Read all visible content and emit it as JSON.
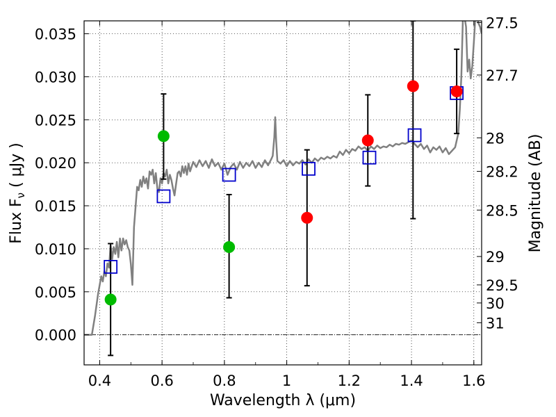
{
  "chart_data": {
    "type": "scatter",
    "xlabel": "Wavelength  λ (μm)",
    "ylabel": "Flux  F",
    "ylabel_sub": "ν",
    "ylabel_unit": "  ( μJy )",
    "ylabel_right": "Magnitude (AB)",
    "xlim": [
      0.35,
      1.625
    ],
    "ylim": [
      -0.0035,
      0.0365
    ],
    "grid": true,
    "x_ticks": [
      {
        "value": 0.4,
        "label": "0.4"
      },
      {
        "value": 0.6,
        "label": "0.6"
      },
      {
        "value": 0.8,
        "label": "0.8"
      },
      {
        "value": 1.0,
        "label": "1"
      },
      {
        "value": 1.2,
        "label": "1.2"
      },
      {
        "value": 1.4,
        "label": "1.4"
      },
      {
        "value": 1.6,
        "label": "1.6"
      }
    ],
    "y_ticks": [
      {
        "value": 0.0,
        "label": "0.000"
      },
      {
        "value": 0.005,
        "label": "0.005"
      },
      {
        "value": 0.01,
        "label": "0.010"
      },
      {
        "value": 0.015,
        "label": "0.015"
      },
      {
        "value": 0.02,
        "label": "0.020"
      },
      {
        "value": 0.025,
        "label": "0.025"
      },
      {
        "value": 0.03,
        "label": "0.030"
      },
      {
        "value": 0.035,
        "label": "0.035"
      }
    ],
    "right_ticks": [
      {
        "flux": 0.0363,
        "label": "27.5"
      },
      {
        "flux": 0.0302,
        "label": "27.7"
      },
      {
        "flux": 0.0229,
        "label": "28"
      },
      {
        "flux": 0.019,
        "label": "28.2"
      },
      {
        "flux": 0.0145,
        "label": "28.5"
      },
      {
        "flux": 0.0091,
        "label": "29"
      },
      {
        "flux": 0.0058,
        "label": "29.5"
      },
      {
        "flux": 0.0037,
        "label": "30"
      },
      {
        "flux": 0.0014,
        "label": "31"
      }
    ],
    "series": [
      {
        "kind": "template",
        "color": "#808080",
        "points": [
          [
            0.35,
            0.0
          ],
          [
            0.36,
            0.0
          ],
          [
            0.37,
            0.0
          ],
          [
            0.375,
            0.0
          ],
          [
            0.385,
            0.0022
          ],
          [
            0.395,
            0.0048
          ],
          [
            0.405,
            0.0068
          ],
          [
            0.41,
            0.0062
          ],
          [
            0.415,
            0.0074
          ],
          [
            0.42,
            0.0068
          ],
          [
            0.425,
            0.0083
          ],
          [
            0.43,
            0.0078
          ],
          [
            0.435,
            0.0104
          ],
          [
            0.44,
            0.0088
          ],
          [
            0.445,
            0.0102
          ],
          [
            0.45,
            0.0094
          ],
          [
            0.455,
            0.0108
          ],
          [
            0.46,
            0.009
          ],
          [
            0.465,
            0.0112
          ],
          [
            0.47,
            0.0098
          ],
          [
            0.475,
            0.0112
          ],
          [
            0.48,
            0.0105
          ],
          [
            0.485,
            0.011
          ],
          [
            0.49,
            0.0102
          ],
          [
            0.495,
            0.0098
          ],
          [
            0.5,
            0.0082
          ],
          [
            0.505,
            0.0058
          ],
          [
            0.51,
            0.0125
          ],
          [
            0.515,
            0.0148
          ],
          [
            0.52,
            0.0172
          ],
          [
            0.525,
            0.0168
          ],
          [
            0.53,
            0.018
          ],
          [
            0.535,
            0.0172
          ],
          [
            0.54,
            0.0184
          ],
          [
            0.545,
            0.0176
          ],
          [
            0.55,
            0.0182
          ],
          [
            0.555,
            0.017
          ],
          [
            0.56,
            0.019
          ],
          [
            0.565,
            0.0186
          ],
          [
            0.57,
            0.0192
          ],
          [
            0.575,
            0.0176
          ],
          [
            0.58,
            0.0188
          ],
          [
            0.585,
            0.017
          ],
          [
            0.59,
            0.0166
          ],
          [
            0.595,
            0.0182
          ],
          [
            0.6,
            0.0176
          ],
          [
            0.605,
            0.0188
          ],
          [
            0.61,
            0.0184
          ],
          [
            0.615,
            0.0192
          ],
          [
            0.62,
            0.0176
          ],
          [
            0.625,
            0.0186
          ],
          [
            0.63,
            0.018
          ],
          [
            0.635,
            0.017
          ],
          [
            0.64,
            0.0162
          ],
          [
            0.645,
            0.0175
          ],
          [
            0.65,
            0.0188
          ],
          [
            0.655,
            0.019
          ],
          [
            0.66,
            0.0184
          ],
          [
            0.665,
            0.0196
          ],
          [
            0.67,
            0.0188
          ],
          [
            0.675,
            0.0196
          ],
          [
            0.68,
            0.0186
          ],
          [
            0.685,
            0.0199
          ],
          [
            0.69,
            0.019
          ],
          [
            0.7,
            0.0201
          ],
          [
            0.71,
            0.0195
          ],
          [
            0.72,
            0.0203
          ],
          [
            0.73,
            0.0196
          ],
          [
            0.74,
            0.0202
          ],
          [
            0.75,
            0.0194
          ],
          [
            0.76,
            0.0204
          ],
          [
            0.77,
            0.0196
          ],
          [
            0.78,
            0.02
          ],
          [
            0.79,
            0.0192
          ],
          [
            0.8,
            0.0199
          ],
          [
            0.81,
            0.0186
          ],
          [
            0.82,
            0.0195
          ],
          [
            0.83,
            0.0199
          ],
          [
            0.84,
            0.0192
          ],
          [
            0.85,
            0.0201
          ],
          [
            0.86,
            0.0194
          ],
          [
            0.87,
            0.02
          ],
          [
            0.88,
            0.0196
          ],
          [
            0.89,
            0.0202
          ],
          [
            0.9,
            0.0194
          ],
          [
            0.91,
            0.02
          ],
          [
            0.92,
            0.0195
          ],
          [
            0.93,
            0.0203
          ],
          [
            0.94,
            0.0197
          ],
          [
            0.95,
            0.0204
          ],
          [
            0.955,
            0.0208
          ],
          [
            0.96,
            0.023
          ],
          [
            0.963,
            0.0253
          ],
          [
            0.966,
            0.0225
          ],
          [
            0.97,
            0.0202
          ],
          [
            0.98,
            0.0199
          ],
          [
            0.99,
            0.0203
          ],
          [
            1.0,
            0.0196
          ],
          [
            1.01,
            0.0202
          ],
          [
            1.02,
            0.0197
          ],
          [
            1.03,
            0.0201
          ],
          [
            1.04,
            0.0199
          ],
          [
            1.05,
            0.0203
          ],
          [
            1.06,
            0.0198
          ],
          [
            1.07,
            0.0204
          ],
          [
            1.08,
            0.02
          ],
          [
            1.09,
            0.0205
          ],
          [
            1.1,
            0.0202
          ],
          [
            1.11,
            0.0206
          ],
          [
            1.12,
            0.0204
          ],
          [
            1.13,
            0.0207
          ],
          [
            1.14,
            0.0205
          ],
          [
            1.15,
            0.0208
          ],
          [
            1.16,
            0.0206
          ],
          [
            1.17,
            0.0213
          ],
          [
            1.18,
            0.0209
          ],
          [
            1.19,
            0.0215
          ],
          [
            1.2,
            0.0211
          ],
          [
            1.21,
            0.0216
          ],
          [
            1.22,
            0.0214
          ],
          [
            1.23,
            0.0219
          ],
          [
            1.24,
            0.0216
          ],
          [
            1.25,
            0.0218
          ],
          [
            1.26,
            0.0214
          ],
          [
            1.27,
            0.0219
          ],
          [
            1.28,
            0.0216
          ],
          [
            1.29,
            0.022
          ],
          [
            1.3,
            0.0217
          ],
          [
            1.31,
            0.0219
          ],
          [
            1.32,
            0.0218
          ],
          [
            1.33,
            0.0221
          ],
          [
            1.34,
            0.0219
          ],
          [
            1.35,
            0.0222
          ],
          [
            1.36,
            0.0221
          ],
          [
            1.37,
            0.0223
          ],
          [
            1.38,
            0.0222
          ],
          [
            1.39,
            0.0224
          ],
          [
            1.4,
            0.0226
          ],
          [
            1.41,
            0.0222
          ],
          [
            1.42,
            0.0218
          ],
          [
            1.43,
            0.0222
          ],
          [
            1.44,
            0.0216
          ],
          [
            1.45,
            0.022
          ],
          [
            1.46,
            0.0212
          ],
          [
            1.47,
            0.0218
          ],
          [
            1.48,
            0.0215
          ],
          [
            1.49,
            0.0219
          ],
          [
            1.5,
            0.0212
          ],
          [
            1.51,
            0.0217
          ],
          [
            1.52,
            0.021
          ],
          [
            1.53,
            0.0214
          ],
          [
            1.54,
            0.0218
          ],
          [
            1.55,
            0.0234
          ],
          [
            1.555,
            0.0262
          ],
          [
            1.56,
            0.03
          ],
          [
            1.565,
            0.037
          ],
          [
            1.57,
            0.037
          ],
          [
            1.575,
            0.0358
          ],
          [
            1.58,
            0.0306
          ],
          [
            1.585,
            0.032
          ],
          [
            1.59,
            0.0298
          ],
          [
            1.595,
            0.0312
          ],
          [
            1.6,
            0.034
          ],
          [
            1.605,
            0.037
          ],
          [
            1.61,
            0.037
          ],
          [
            1.615,
            0.0362
          ],
          [
            1.62,
            0.0358
          ],
          [
            1.625,
            0.035
          ]
        ]
      },
      {
        "kind": "model",
        "marker": "open-square",
        "color": "#0000cc",
        "points": [
          {
            "x": 0.435,
            "y": 0.0079
          },
          {
            "x": 0.605,
            "y": 0.0161
          },
          {
            "x": 0.815,
            "y": 0.0186
          },
          {
            "x": 1.07,
            "y": 0.0193
          },
          {
            "x": 1.265,
            "y": 0.0206
          },
          {
            "x": 1.41,
            "y": 0.0232
          },
          {
            "x": 1.545,
            "y": 0.0281
          }
        ]
      },
      {
        "kind": "observed-green",
        "marker": "filled-circle",
        "color": "#00bb00",
        "points": [
          {
            "x": 0.435,
            "y": 0.0041,
            "lo": -0.0024,
            "hi": 0.0106
          },
          {
            "x": 0.605,
            "y": 0.0231,
            "lo": 0.0181,
            "hi": 0.028
          },
          {
            "x": 0.815,
            "y": 0.0102,
            "lo": 0.0043,
            "hi": 0.0163
          }
        ]
      },
      {
        "kind": "observed-red",
        "marker": "filled-circle",
        "color": "#ff0000",
        "points": [
          {
            "x": 1.065,
            "y": 0.0136,
            "lo": 0.0057,
            "hi": 0.0215
          },
          {
            "x": 1.26,
            "y": 0.0226,
            "lo": 0.0173,
            "hi": 0.0279
          },
          {
            "x": 1.405,
            "y": 0.0289,
            "lo": 0.0135,
            "hi": 0.0365
          },
          {
            "x": 1.545,
            "y": 0.0283,
            "lo": 0.0234,
            "hi": 0.0332
          }
        ]
      }
    ]
  }
}
